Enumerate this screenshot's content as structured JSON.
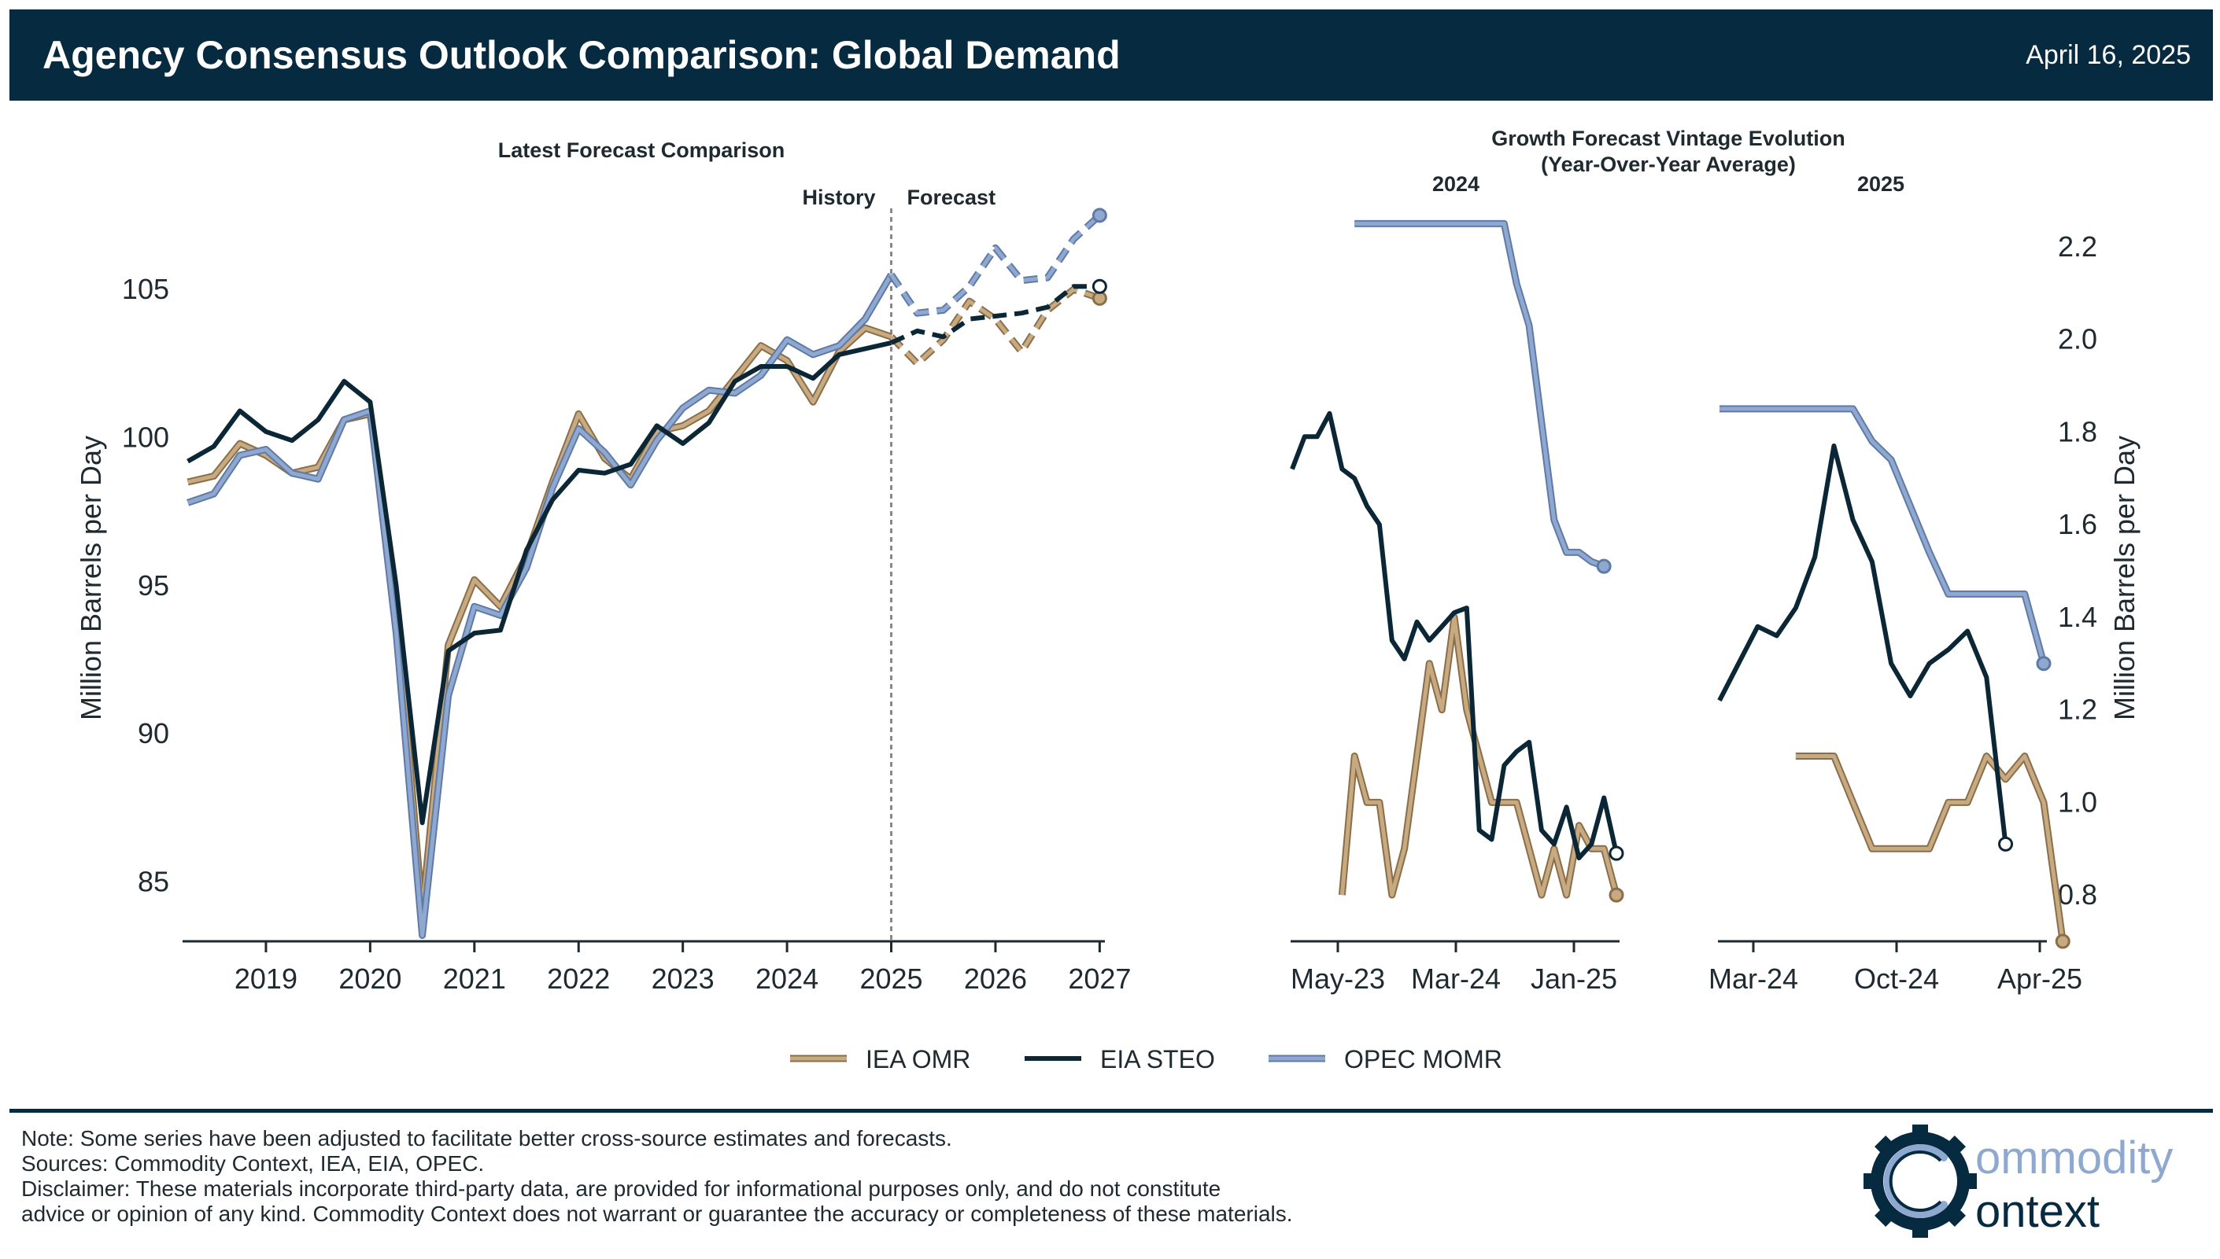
{
  "header": {
    "title": "Agency Consensus Outlook Comparison: Global Demand",
    "date": "April 16, 2025"
  },
  "colors": {
    "header_bg": "#062a3f",
    "iea": "#c8aa82",
    "eia": "#0b2736",
    "opec": "#8fa8d0"
  },
  "legend": [
    {
      "label": "IEA OMR",
      "series": "iea"
    },
    {
      "label": "EIA STEO",
      "series": "eia"
    },
    {
      "label": "OPEC MOMR",
      "series": "opec"
    }
  ],
  "chart_data": [
    {
      "type": "line",
      "title": "Latest Forecast Comparison",
      "ylabel": "Million Barrels per Day",
      "ylim": [
        83,
        108
      ],
      "xlim": [
        2018.2,
        2027.05
      ],
      "y_ticks": [
        "85",
        "90",
        "95",
        "100",
        "105"
      ],
      "x_ticks": [
        "2019",
        "2020",
        "2021",
        "2022",
        "2023",
        "2024",
        "2025",
        "2026",
        "2027"
      ],
      "divider_x": 2025.0,
      "divider_labels": {
        "left": "History",
        "right": "Forecast"
      },
      "x": [
        2018.25,
        2018.5,
        2018.75,
        2019.0,
        2019.25,
        2019.5,
        2019.75,
        2020.0,
        2020.25,
        2020.5,
        2020.75,
        2021.0,
        2021.25,
        2021.5,
        2021.75,
        2022.0,
        2022.25,
        2022.5,
        2022.75,
        2023.0,
        2023.25,
        2023.5,
        2023.75,
        2024.0,
        2024.25,
        2024.5,
        2024.75,
        2025.0,
        2025.25,
        2025.5,
        2025.75,
        2026.0,
        2026.25,
        2026.5,
        2026.75,
        2027.0
      ],
      "forecast_start_index": 27,
      "series": [
        {
          "name": "IEA OMR",
          "key": "iea",
          "values": [
            98.5,
            98.7,
            99.8,
            99.4,
            98.8,
            99.0,
            100.6,
            100.8,
            94.5,
            84.0,
            93.0,
            95.2,
            94.3,
            96.0,
            98.5,
            100.8,
            99.3,
            98.6,
            100.2,
            100.4,
            100.9,
            102.0,
            103.1,
            102.6,
            101.2,
            102.9,
            103.7,
            103.4,
            102.5,
            103.3,
            104.6,
            104.0,
            102.9,
            104.3,
            105.0,
            104.7
          ]
        },
        {
          "name": "EIA STEO",
          "key": "eia",
          "values": [
            99.2,
            99.7,
            100.9,
            100.2,
            99.9,
            100.6,
            101.9,
            101.2,
            95.0,
            87.0,
            92.8,
            93.4,
            93.5,
            96.2,
            97.9,
            98.9,
            98.8,
            99.1,
            100.4,
            99.8,
            100.5,
            101.9,
            102.4,
            102.4,
            102.0,
            102.8,
            103.0,
            103.2,
            103.6,
            103.4,
            104.0,
            104.1,
            104.2,
            104.4,
            105.1,
            105.1
          ]
        },
        {
          "name": "OPEC MOMR",
          "key": "opec",
          "values": [
            97.8,
            98.1,
            99.4,
            99.6,
            98.8,
            98.6,
            100.6,
            100.9,
            93.4,
            83.2,
            91.3,
            94.3,
            94.0,
            95.6,
            98.3,
            100.3,
            99.5,
            98.4,
            99.9,
            101.0,
            101.6,
            101.5,
            102.1,
            103.3,
            102.8,
            103.1,
            104.0,
            105.5,
            104.2,
            104.3,
            105.1,
            106.4,
            105.3,
            105.4,
            106.7,
            107.5
          ]
        }
      ]
    },
    {
      "type": "line",
      "title": "Growth Forecast Vintage Evolution\n(Year-Over-Year Average)",
      "title_lines": [
        "Growth Forecast Vintage Evolution",
        "(Year-Over-Year Average)"
      ],
      "ylabel": "Million Barrels per Day",
      "ylim": [
        0.7,
        2.3
      ],
      "y_ticks": [
        "0.8",
        "1.0",
        "1.2",
        "1.4",
        "1.6",
        "1.8",
        "2.0",
        "2.2"
      ],
      "panels": [
        {
          "label": "2024",
          "x_ticks": [
            "May-23",
            "Mar-24",
            "Jan-25"
          ],
          "series": [
            {
              "name": "IEA OMR",
              "key": "iea",
              "values": [
                null,
                null,
                null,
                null,
                0.8,
                1.1,
                1.0,
                1.0,
                0.8,
                0.9,
                1.1,
                1.3,
                1.2,
                1.4,
                1.2,
                1.1,
                1.0,
                1.0,
                1.0,
                0.9,
                0.8,
                0.9,
                0.8,
                0.95,
                0.9,
                0.9,
                0.8
              ]
            },
            {
              "name": "EIA STEO",
              "key": "eia",
              "values": [
                1.72,
                1.79,
                1.79,
                1.84,
                1.72,
                1.7,
                1.64,
                1.6,
                1.35,
                1.31,
                1.39,
                1.35,
                1.38,
                1.41,
                1.42,
                0.94,
                0.92,
                1.08,
                1.11,
                1.13,
                0.94,
                0.91,
                0.99,
                0.88,
                0.91,
                1.01,
                0.89
              ]
            },
            {
              "name": "OPEC MOMR",
              "key": "opec",
              "values": [
                null,
                null,
                null,
                null,
                null,
                2.25,
                2.25,
                2.25,
                2.25,
                2.25,
                2.25,
                2.25,
                2.25,
                2.25,
                2.25,
                2.25,
                2.25,
                2.25,
                2.12,
                2.03,
                1.82,
                1.61,
                1.54,
                1.54,
                1.52,
                1.51
              ]
            }
          ]
        },
        {
          "label": "2025",
          "x_ticks": [
            "Mar-24",
            "Oct-24",
            "Apr-25"
          ],
          "series": [
            {
              "name": "IEA OMR",
              "key": "iea",
              "values": [
                null,
                null,
                null,
                null,
                1.1,
                1.1,
                1.1,
                1.0,
                0.9,
                0.9,
                0.9,
                0.9,
                1.0,
                1.0,
                1.1,
                1.05,
                1.1,
                1.0,
                0.7
              ]
            },
            {
              "name": "EIA STEO",
              "key": "eia",
              "values": [
                1.22,
                1.3,
                1.38,
                1.36,
                1.42,
                1.53,
                1.77,
                1.61,
                1.52,
                1.3,
                1.23,
                1.3,
                1.33,
                1.37,
                1.27,
                0.91
              ]
            },
            {
              "name": "OPEC MOMR",
              "key": "opec",
              "values": [
                1.85,
                1.85,
                1.85,
                1.85,
                1.85,
                1.85,
                1.85,
                1.85,
                1.78,
                1.74,
                1.64,
                1.54,
                1.45,
                1.45,
                1.45,
                1.45,
                1.45,
                1.3
              ]
            }
          ]
        }
      ]
    }
  ],
  "footer": {
    "note": "Note: Some series have been adjusted to facilitate better cross-source estimates and forecasts.",
    "sources": "Sources: Commodity Context, IEA, EIA, OPEC.",
    "disclaimer_1": "Disclaimer: These materials incorporate third-party data, are provided for informational purposes only, and do not constitute",
    "disclaimer_2": "advice or opinion of any kind. Commodity Context does not warrant or guarantee the accuracy or completeness of these materials."
  },
  "logo": {
    "line1": "ommodity",
    "line2": "ontext",
    "icon": "gear-c-logo-icon"
  }
}
